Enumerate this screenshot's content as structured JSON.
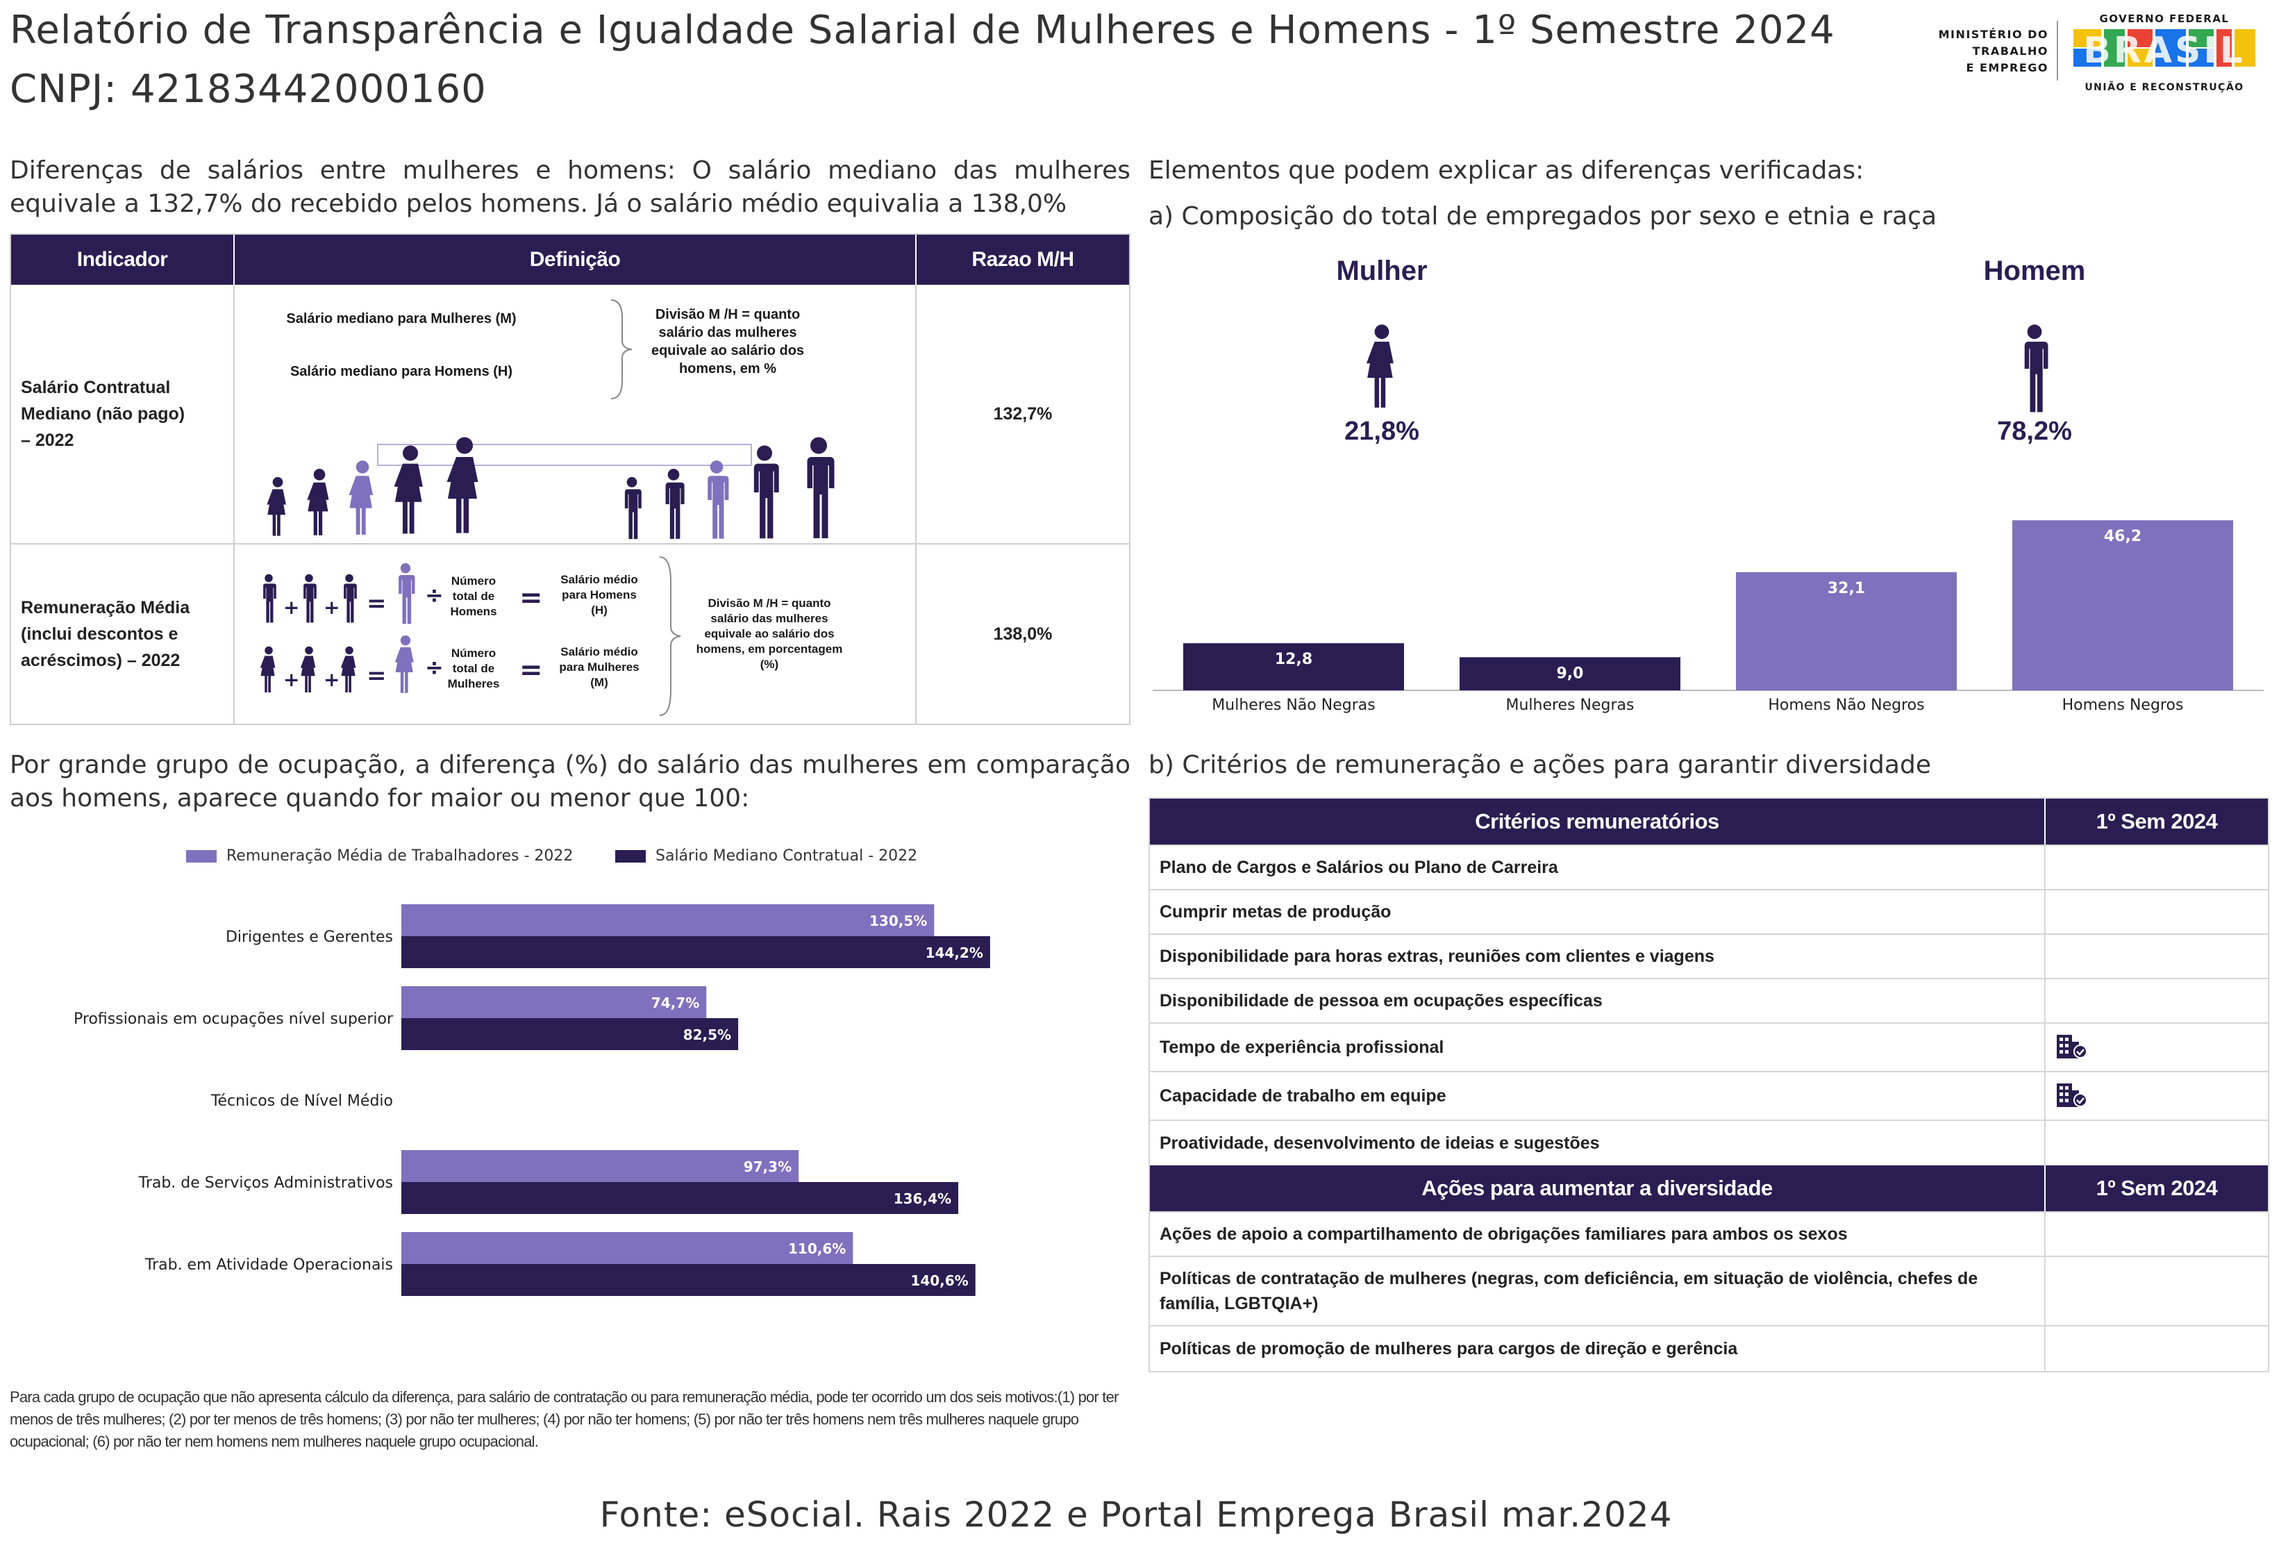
{
  "header": {
    "title": "Relatório de Transparência e Igualdade Salarial de Mulheres e Homens - 1º Semestre 2024",
    "cnpj": "CNPJ: 42183442000160",
    "ministry_line1": "MINISTÉRIO DO",
    "ministry_line2": "TRABALHO",
    "ministry_line3": "E EMPREGO",
    "gov_top": "GOVERNO FEDERAL",
    "gov_word": "BRASIL",
    "gov_bottom": "UNIÃO E RECONSTRUÇÃO"
  },
  "intro": {
    "text": "Diferenças de salários entre mulheres e homens: O salário mediano das mulheres equivale a 132,7% do recebido pelos homens. Já o salário médio equivalia a 138,0%"
  },
  "indicator_table": {
    "headers": [
      "Indicador",
      "Definição",
      "Razao M/H"
    ],
    "row1": {
      "label": "Salário Contratual Mediano (não pago) – 2022",
      "ratio": "132,7%",
      "def_women": "Salário mediano para Mulheres (M)",
      "def_men": "Salário mediano para Homens (H)",
      "def_division": "Divisão M /H = quanto salário das mulheres equivale ao salário dos homens, em %"
    },
    "row2": {
      "label": "Remuneração Média (inclui descontos e acréscimos) – 2022",
      "ratio": "138,0%",
      "men_total": "Número total de Homens",
      "men_avg": "Salário médio para Homens (H)",
      "women_total": "Número total de Mulheres",
      "women_avg": "Salário médio para Mulheres (M)",
      "def_division": "Divisão M /H = quanto salário das mulheres equivale ao salário dos homens, em porcentagem (%)"
    }
  },
  "composition": {
    "heading": "Elementos que podem explicar as diferenças verificadas:",
    "subheading": "a) Composição do total de empregados por sexo e etnia e raça",
    "women_label": "Mulher",
    "women_pct": "21,8%",
    "men_label": "Homem",
    "men_pct": "78,2%",
    "colors": {
      "dark": "#2b1d52",
      "light": "#7f71bd"
    }
  },
  "chart_data": [
    {
      "type": "bar",
      "categories": [
        "Mulheres Não Negras",
        "Mulheres Negras",
        "Homens Não Negros",
        "Homens Negros"
      ],
      "values": [
        12.8,
        9.0,
        32.1,
        46.2
      ],
      "labels": [
        "12,8",
        "9,0",
        "32,1",
        "46,2"
      ],
      "colors": [
        "#2b1d52",
        "#2b1d52",
        "#7f71bd",
        "#7f71bd"
      ]
    },
    {
      "type": "bar",
      "orientation": "horizontal",
      "categories": [
        "Dirigentes e Gerentes",
        "Profissionais em ocupações nível superior",
        "Técnicos de Nível Médio",
        "Trab. de Serviços Administrativos",
        "Trab. em Atividade Operacionais"
      ],
      "series": [
        {
          "name": "Remuneração Média de Trabalhadores - 2022",
          "color": "#7f71bd",
          "values": [
            130.5,
            74.7,
            null,
            97.3,
            110.6
          ],
          "labels": [
            "130,5%",
            "74,7%",
            "",
            "97,3%",
            "110,6%"
          ]
        },
        {
          "name": "Salário Mediano Contratual - 2022",
          "color": "#2b1d52",
          "values": [
            144.2,
            82.5,
            null,
            136.4,
            140.6
          ],
          "labels": [
            "144,2%",
            "82,5%",
            "",
            "136,4%",
            "140,6%"
          ]
        }
      ],
      "legend": "top"
    }
  ],
  "occupation": {
    "text": "Por grande grupo de ocupação, a diferença (%) do salário das mulheres em comparação aos homens, aparece quando for maior ou menor que 100:"
  },
  "footnote": "Para cada grupo de ocupação que não apresenta cálculo da diferença, para salário de contratação ou para remuneração média, pode ter ocorrido um dos seis motivos:(1) por ter menos de três mulheres; (2) por ter menos de três homens; (3) por não ter mulheres; (4) por não ter homens; (5) por não ter três homens nem três mulheres naquele grupo ocupacional; (6) por não ter nem homens nem mulheres naquele grupo ocupacional.",
  "criteria": {
    "heading": "b) Critérios de remuneração e ações para garantir diversidade",
    "table1_header": "Critérios remuneratórios",
    "table1_col": "1º Sem 2024",
    "items": [
      {
        "label": "Plano de Cargos e Salários ou Plano de Carreira",
        "icon": ""
      },
      {
        "label": "Cumprir metas de produção",
        "icon": ""
      },
      {
        "label": "Disponibilidade para horas extras, reuniões com clientes e viagens",
        "icon": ""
      },
      {
        "label": "Disponibilidade de pessoa em ocupações específicas",
        "icon": ""
      },
      {
        "label": "Tempo de experiência profissional",
        "icon": "company-check-icon"
      },
      {
        "label": "Capacidade de trabalho em equipe",
        "icon": "company-check-icon"
      },
      {
        "label": "Proatividade, desenvolvimento de ideias e sugestões",
        "icon": ""
      }
    ],
    "table2_header": "Ações para aumentar a diversidade",
    "table2_col": "1º Sem 2024",
    "actions": [
      {
        "label": "Ações de apoio a compartilhamento de obrigações familiares para ambos os sexos"
      },
      {
        "label": "Políticas de contratação de mulheres (negras, com deficiência, em situação de violência, chefes de família, LGBTQIA+)"
      },
      {
        "label": "Políticas de promoção de mulheres para cargos de direção e gerência"
      }
    ]
  },
  "source": "Fonte: eSocial. Rais 2022 e Portal Emprega Brasil mar.2024"
}
